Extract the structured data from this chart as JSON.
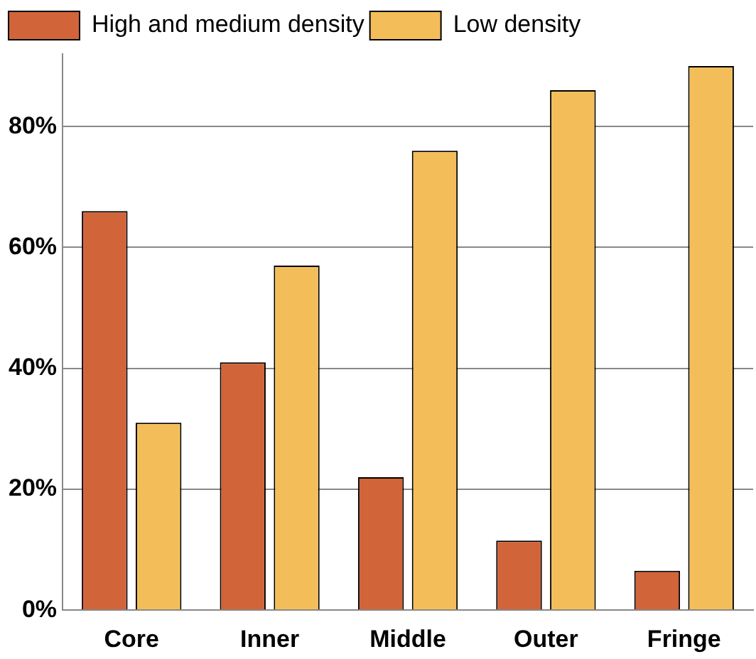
{
  "chart_data": {
    "type": "bar",
    "categories": [
      "Core",
      "Inner",
      "Middle",
      "Outer",
      "Fringe"
    ],
    "series": [
      {
        "name": "High and medium density",
        "color": "#d2643a",
        "values": [
          66,
          41,
          22,
          11.5,
          6.5
        ]
      },
      {
        "name": "Low density",
        "color": "#f3be5a",
        "values": [
          31,
          57,
          76,
          86,
          90
        ]
      }
    ],
    "ylim": [
      0,
      92
    ],
    "yticks": [
      {
        "value": 0,
        "label": "0%"
      },
      {
        "value": 20,
        "label": "20%"
      },
      {
        "value": 40,
        "label": "40%"
      },
      {
        "value": 60,
        "label": "60%"
      },
      {
        "value": 80,
        "label": "80%"
      }
    ],
    "grid": "y",
    "legend": "top"
  }
}
